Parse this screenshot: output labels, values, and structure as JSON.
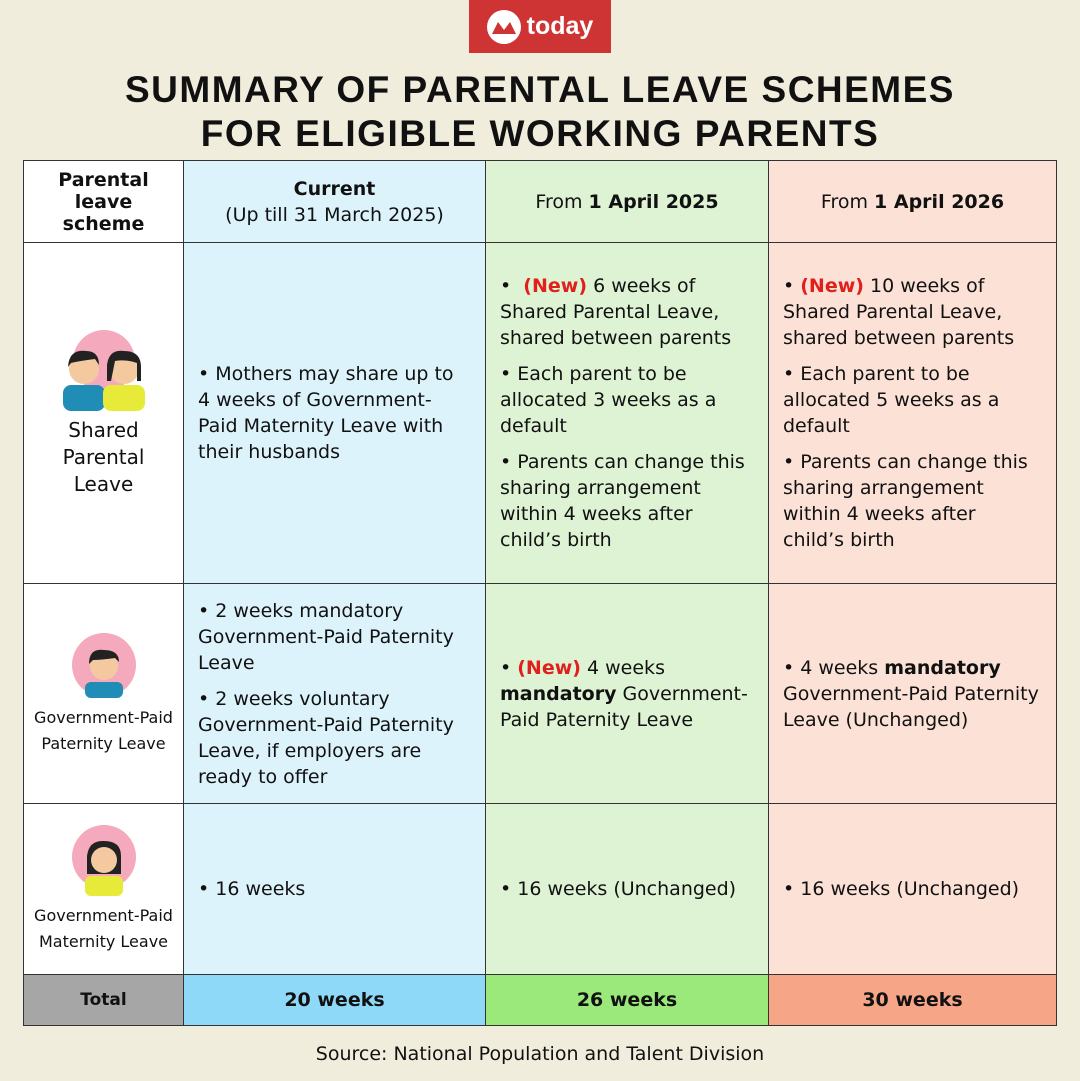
{
  "brand": {
    "logo_text": "today",
    "color": "#cf3435"
  },
  "title": {
    "line1": "SUMMARY OF PARENTAL LEAVE SCHEMES",
    "line2": "FOR ELIGIBLE WORKING PARENTS"
  },
  "header": {
    "scheme": "Parental leave scheme",
    "current": "Current",
    "current_sub": "(Up till 31 March 2025)",
    "from": "From",
    "col2_date": "1 April 2025",
    "col3_date": "1 April 2026"
  },
  "rows": [
    {
      "label": "Shared Parental Leave",
      "icon": "couple-icon",
      "current": [
        "• Mothers may share up to 4 weeks of Government-Paid Maternity Leave with their husbands"
      ],
      "y2025": {
        "new": "(New)",
        "b1": "6 weeks of Shared Parental Leave, shared between parents",
        "b2": "• Each parent to be allocated 3 weeks as a default",
        "b3": "• Parents can change this sharing arrangement within 4 weeks after child’s birth"
      },
      "y2026": {
        "new": "(New)",
        "b1": "10 weeks of Shared Parental Leave, shared between parents",
        "b2": "• Each parent to be allocated 5 weeks as a default",
        "b3": "• Parents can change this sharing arrangement within 4 weeks after child’s birth"
      }
    },
    {
      "label": "Government-Paid Paternity Leave",
      "icon": "father-icon",
      "current": [
        "• 2 weeks mandatory Government-Paid Paternity Leave",
        "• 2 weeks voluntary Government-Paid Paternity Leave, if employers are ready to offer"
      ],
      "y2025": {
        "new": "(New)",
        "pre": "4 weeks",
        "bold": "mandatory",
        "post": "Government-Paid Paternity Leave"
      },
      "y2026": {
        "pre": "• 4 weeks",
        "bold": "mandatory",
        "post": "Government-Paid Paternity Leave (Unchanged)"
      }
    },
    {
      "label": "Government-Paid Maternity Leave",
      "icon": "mother-icon",
      "current": "• 16 weeks",
      "y2025": "• 16 weeks (Unchanged)",
      "y2026": "• 16 weeks (Unchanged)"
    }
  ],
  "total": {
    "label": "Total",
    "current": "20 weeks",
    "y2025": "26 weeks",
    "y2026": "30 weeks"
  },
  "source": "Source: National Population and Talent Division",
  "colors": {
    "new": "#e0201b",
    "current": "#dcf3fc",
    "y2025": "#ddf3d4",
    "y2026": "#fbe1d6"
  }
}
